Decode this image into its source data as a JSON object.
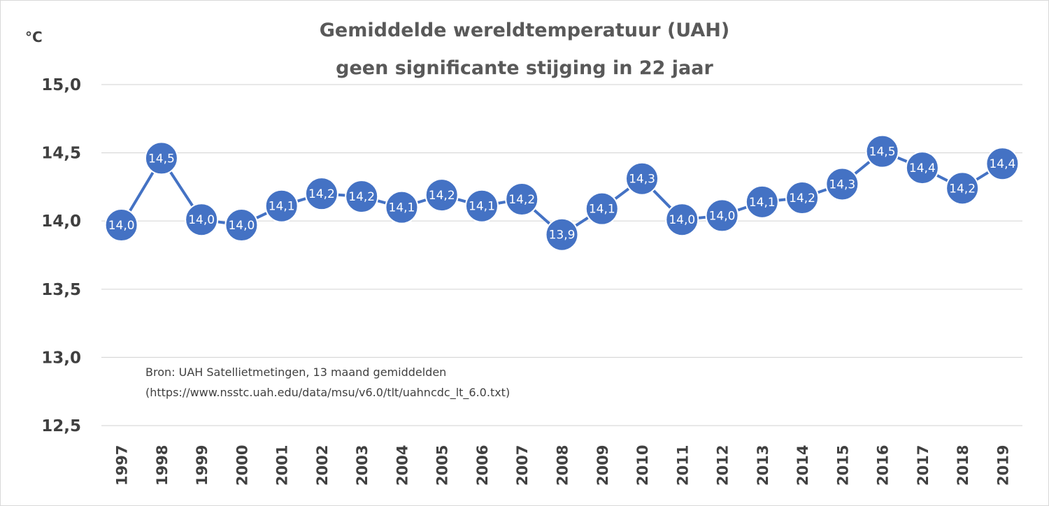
{
  "chart_data": {
    "type": "line",
    "title_line1": "Gemiddelde wereldtemperatuur (UAH)",
    "title_line2": "geen significante stijging in 22 jaar",
    "unit_label": "°C",
    "xlabel": "",
    "ylabel": "",
    "ylim": [
      12.5,
      15.0
    ],
    "yticks": [
      15.0,
      14.5,
      14.0,
      13.5,
      13.0,
      12.5
    ],
    "ytick_labels": [
      "15,0",
      "14,5",
      "14,0",
      "13,5",
      "13,0",
      "12,5"
    ],
    "grid": true,
    "series_color": "#4472c4",
    "categories": [
      "1997",
      "1998",
      "1999",
      "2000",
      "2001",
      "2002",
      "2003",
      "2004",
      "2005",
      "2006",
      "2007",
      "2008",
      "2009",
      "2010",
      "2011",
      "2012",
      "2013",
      "2014",
      "2015",
      "2016",
      "2017",
      "2018",
      "2019"
    ],
    "values": [
      13.97,
      14.46,
      14.01,
      13.97,
      14.11,
      14.2,
      14.18,
      14.1,
      14.19,
      14.11,
      14.16,
      13.9,
      14.09,
      14.31,
      14.01,
      14.04,
      14.14,
      14.17,
      14.27,
      14.51,
      14.39,
      14.24,
      14.42
    ],
    "data_labels": [
      "14,0",
      "14,5",
      "14,0",
      "14,0",
      "14,1",
      "14,2",
      "14,2",
      "14,1",
      "14,2",
      "14,1",
      "14,2",
      "13,9",
      "14,1",
      "14,3",
      "14,0",
      "14,0",
      "14,1",
      "14,2",
      "14,3",
      "14,5",
      "14,4",
      "14,2",
      "14,4"
    ],
    "annotation_line1": "Bron: UAH Satellietmetingen,  13 maand gemiddelden",
    "annotation_line2": "(https://www.nsstc.uah.edu/data/msu/v6.0/tlt/uahncdc_lt_6.0.txt)"
  }
}
